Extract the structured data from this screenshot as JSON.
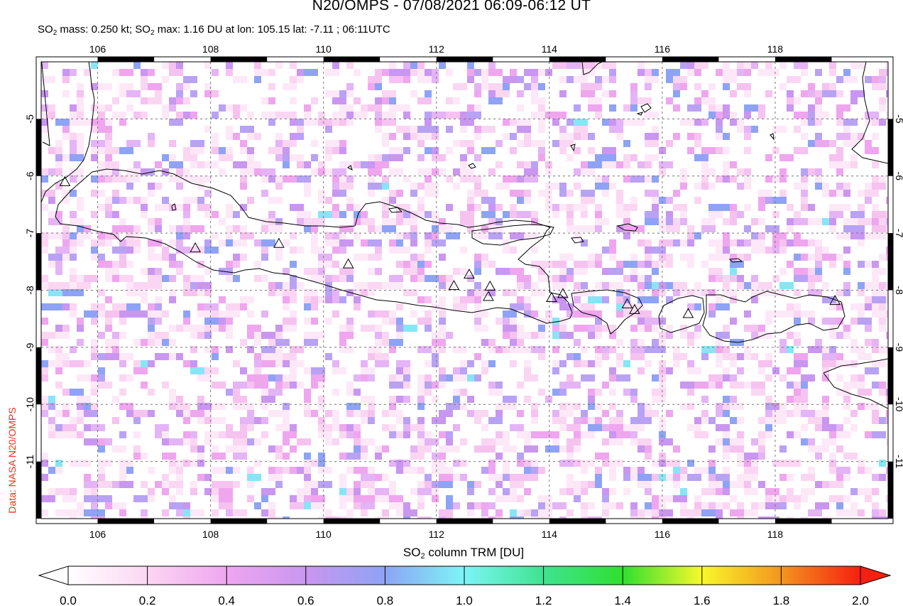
{
  "title": "N20/OMPS - 07/08/2021 06:09-06:12 UT",
  "subtitle": {
    "so": "SO",
    "two": "2",
    "mass_text": " mass: 0.250 kt; SO",
    "max_text": " max: 1.16 DU at lon: 105.15 lat: -7.11 ; 06:11UTC"
  },
  "credit": "Data: NASA N20/OMPS",
  "colorbar": {
    "label_prefix": "SO",
    "label_sub": "2",
    "label_suffix": " column TRM [DU]",
    "ticks": [
      "0.0",
      "0.2",
      "0.4",
      "0.6",
      "0.8",
      "1.0",
      "1.2",
      "1.4",
      "1.6",
      "1.8",
      "2.0"
    ],
    "range": [
      0.0,
      2.0
    ],
    "colors": [
      "#ffffff",
      "#fbd6f3",
      "#efa6ef",
      "#c996f0",
      "#8ea3f5",
      "#7cf5f7",
      "#3fe38f",
      "#2fe02f",
      "#f8f82a",
      "#f4941e",
      "#f52010"
    ]
  },
  "map": {
    "lon_range": [
      105,
      120
    ],
    "lat_range": [
      -12,
      -4
    ],
    "lon_ticks": [
      "106",
      "108",
      "110",
      "112",
      "114",
      "116",
      "118"
    ],
    "lat_ticks": [
      "-5",
      "-6",
      "-7",
      "-8",
      "-9",
      "-10",
      "-11"
    ],
    "volcanoes": [
      [
        105.42,
        -6.1
      ],
      [
        107.73,
        -7.26
      ],
      [
        109.21,
        -7.18
      ],
      [
        110.44,
        -7.54
      ],
      [
        112.31,
        -7.92
      ],
      [
        112.58,
        -7.72
      ],
      [
        112.95,
        -7.93
      ],
      [
        112.92,
        -8.11
      ],
      [
        114.04,
        -8.13
      ],
      [
        114.24,
        -8.06
      ],
      [
        115.38,
        -8.24
      ],
      [
        115.51,
        -8.34
      ],
      [
        116.46,
        -8.41
      ],
      [
        119.06,
        -8.18
      ]
    ]
  }
}
